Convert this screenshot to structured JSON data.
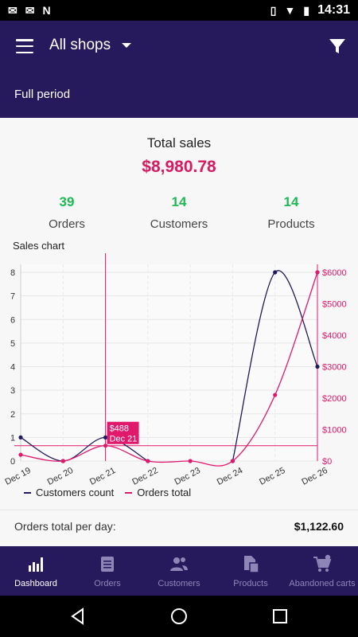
{
  "status_bar": {
    "left_icons": [
      "gmail-icon",
      "gmail-icon",
      "n-notification-icon"
    ],
    "right_icons": [
      "vibrate-icon",
      "wifi-icon",
      "battery-icon"
    ],
    "time": "14:31"
  },
  "app_bar": {
    "shop_selector": "All shops",
    "period": "Full period"
  },
  "summary": {
    "total_sales_label": "Total sales",
    "total_sales_value": "$8,980.78",
    "stats": [
      {
        "value": "39",
        "label": "Orders"
      },
      {
        "value": "14",
        "label": "Customers"
      },
      {
        "value": "14",
        "label": "Products"
      }
    ]
  },
  "chart_title": "Sales chart",
  "chart_data": {
    "type": "line",
    "categories": [
      "Dec 19",
      "Dec 20",
      "Dec 21",
      "Dec 22",
      "Dec 23",
      "Dec 24",
      "Dec 25",
      "Dec 26"
    ],
    "series": [
      {
        "name": "Customers count",
        "axis": "left",
        "color": "#1f1a5c",
        "values": [
          1,
          0,
          1,
          0,
          null,
          0,
          8,
          4
        ]
      },
      {
        "name": "Orders total",
        "axis": "right",
        "color": "#e0196d",
        "values": [
          200,
          0,
          488,
          0,
          0,
          0,
          2100,
          6000
        ]
      }
    ],
    "y_left": {
      "ticks": [
        "0",
        "1",
        "2",
        "3",
        "4",
        "5",
        "6",
        "7",
        "8"
      ],
      "range": [
        0,
        8
      ]
    },
    "y_right": {
      "ticks": [
        "$0",
        "$1000",
        "$2000",
        "$3000",
        "$4000",
        "$5000",
        "$6000"
      ],
      "range": [
        0,
        6000
      ]
    },
    "tooltip": {
      "value": "$488",
      "date": "Dec 21"
    },
    "average_line_value": 488,
    "grid": true,
    "legend": "bottom"
  },
  "footer": {
    "label": "Orders total per day:",
    "value": "$1,122.60"
  },
  "bottom_nav": [
    {
      "label": "Dashboard",
      "icon": "bar-chart-icon",
      "active": true
    },
    {
      "label": "Orders",
      "icon": "clipboard-icon",
      "active": false
    },
    {
      "label": "Customers",
      "icon": "people-icon",
      "active": false
    },
    {
      "label": "Products",
      "icon": "document-icon",
      "active": false
    },
    {
      "label": "Abandoned carts",
      "icon": "cart-icon",
      "active": false
    }
  ],
  "colors": {
    "primary": "#261a5c",
    "accent_pink": "#d81b60",
    "accent_green": "#1db954"
  }
}
